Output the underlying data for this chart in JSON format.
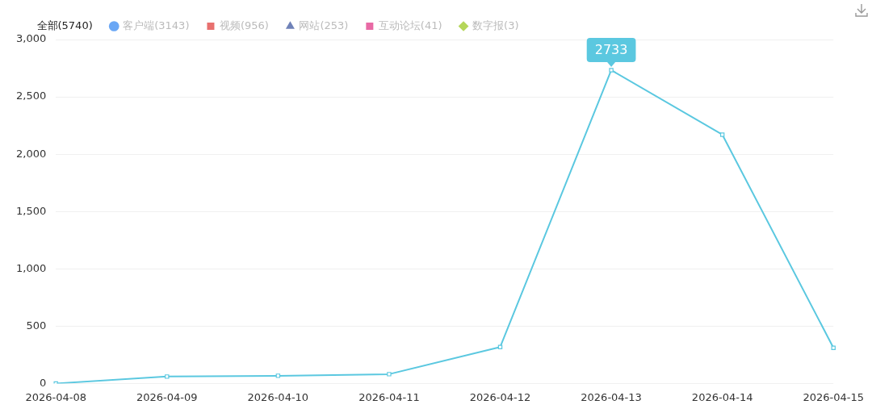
{
  "chart_data": {
    "type": "line",
    "categories": [
      "2026-04-08",
      "2026-04-09",
      "2026-04-10",
      "2026-04-11",
      "2026-04-12",
      "2026-04-13",
      "2026-04-14",
      "2026-04-15"
    ],
    "series": [
      {
        "name": "全部(5740)",
        "color": "#5bc8e0",
        "marker": "square",
        "values": [
          0,
          60,
          67,
          81,
          318,
          2733,
          2170,
          311
        ]
      },
      {
        "name": "客户端(3143)",
        "color": "#6aa7f5",
        "marker": "circle",
        "values": [
          null,
          null,
          null,
          null,
          null,
          null,
          null,
          null
        ]
      },
      {
        "name": "视频(956)",
        "color": "#e8706f",
        "marker": "square",
        "values": [
          null,
          null,
          null,
          null,
          null,
          null,
          null,
          null
        ]
      },
      {
        "name": "网站(253)",
        "color": "#6f82b8",
        "marker": "triangle",
        "values": [
          null,
          null,
          null,
          null,
          null,
          null,
          null,
          null
        ]
      },
      {
        "name": "互动论坛(41)",
        "color": "#e86aa5",
        "marker": "square",
        "values": [
          null,
          null,
          null,
          null,
          null,
          null,
          null,
          null
        ]
      },
      {
        "name": "数字报(3)",
        "color": "#b5d65a",
        "marker": "diamond",
        "values": [
          null,
          null,
          null,
          null,
          null,
          null,
          null,
          null
        ]
      }
    ],
    "ylim": [
      0,
      3000
    ],
    "yticks": [
      0,
      {
        "value": 500,
        "label": "500"
      },
      {
        "value": 1000,
        "label": "1,000"
      },
      {
        "value": 1500,
        "label": "1,500"
      },
      {
        "value": 2000,
        "label": "2,000"
      },
      {
        "value": 2500,
        "label": "2,500"
      },
      {
        "value": 3000,
        "label": "3,000"
      }
    ],
    "grid": "y",
    "legend": "top left",
    "line_style": "solid",
    "annotations": [
      {
        "text": "2733",
        "x": "2026-04-13",
        "y": 2733
      }
    ]
  }
}
